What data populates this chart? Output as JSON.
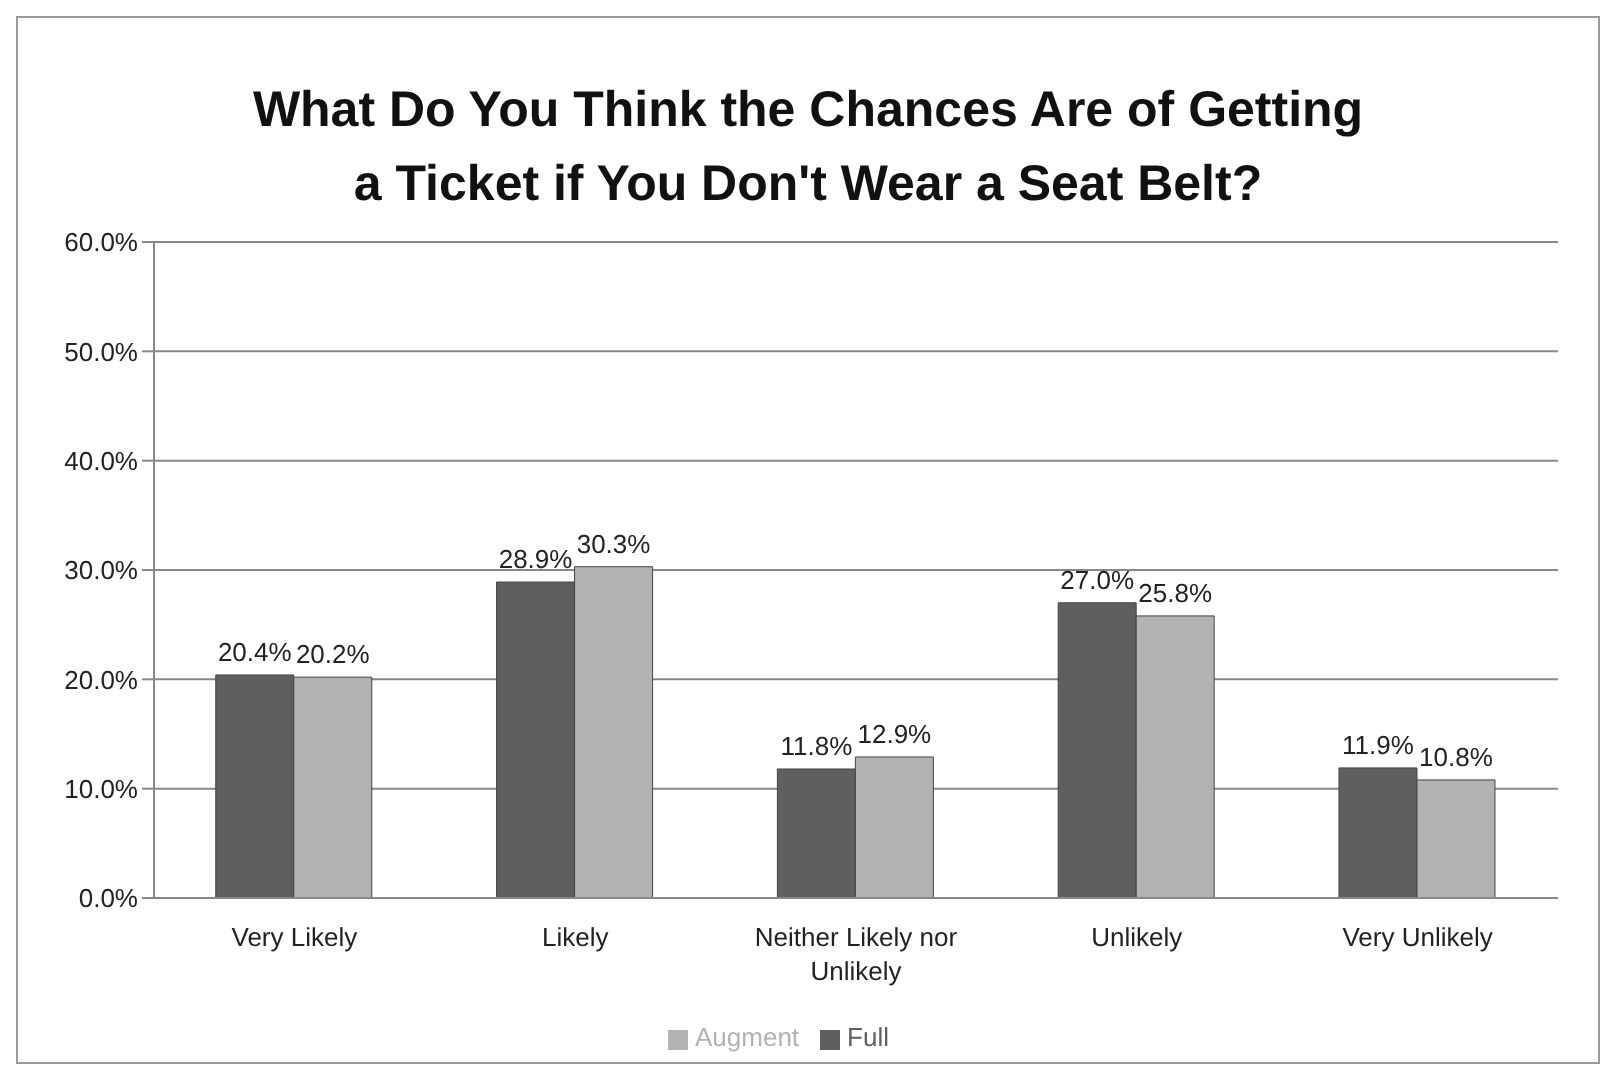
{
  "chart_data": {
    "type": "bar",
    "title": "What Do You Think the Chances Are of Getting a Ticket if You Don't Wear a Seat Belt?",
    "categories": [
      "Very Likely",
      "Likely",
      "Neither Likely nor Unlikely",
      "Unlikely",
      "Very Unlikely"
    ],
    "series": [
      {
        "name": "Full",
        "color": "#5f5f5f",
        "values": [
          20.4,
          28.9,
          11.8,
          27.0,
          11.9
        ],
        "value_labels": [
          "20.4%",
          "28.9%",
          "11.8%",
          "27.0%",
          "11.9%"
        ]
      },
      {
        "name": "Augment",
        "color": "#b2b2b2",
        "values": [
          20.2,
          30.3,
          12.9,
          25.8,
          10.8
        ],
        "value_labels": [
          "20.2%",
          "30.3%",
          "12.9%",
          "25.8%",
          "10.8%"
        ]
      }
    ],
    "ylim": [
      0,
      60
    ],
    "yticks": [
      {
        "value": 0,
        "label": "0.0%"
      },
      {
        "value": 10,
        "label": "10.0%"
      },
      {
        "value": 20,
        "label": "20.0%"
      },
      {
        "value": 30,
        "label": "30.0%"
      },
      {
        "value": 40,
        "label": "40.0%"
      },
      {
        "value": 50,
        "label": "50.0%"
      },
      {
        "value": 60,
        "label": "60.0%"
      }
    ],
    "grid": "y",
    "legend": "bottom"
  }
}
